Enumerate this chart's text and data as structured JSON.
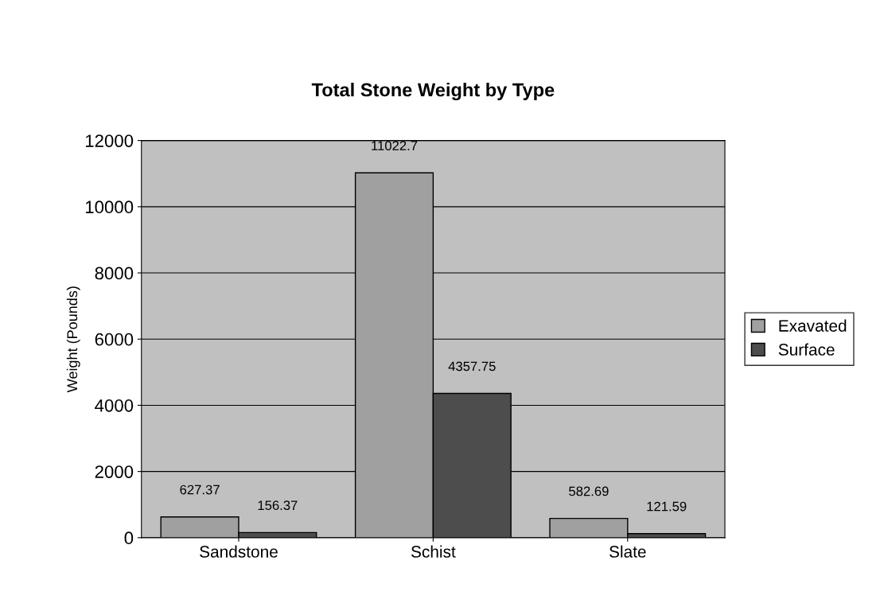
{
  "chart_data": {
    "type": "bar",
    "title": "Total Stone Weight by Type",
    "ylabel": "Weight (Pounds)",
    "categories": [
      "Sandstone",
      "Schist",
      "Slate"
    ],
    "series": [
      {
        "name": "Exavated",
        "color": "#a0a0a0",
        "values": [
          627.37,
          11022.7,
          582.69
        ]
      },
      {
        "name": "Surface",
        "color": "#4d4d4d",
        "values": [
          156.37,
          4357.75,
          121.59
        ]
      }
    ],
    "ylim": [
      0,
      12000
    ],
    "yticks": [
      0,
      2000,
      4000,
      6000,
      8000,
      10000,
      12000
    ],
    "grid": "y",
    "legend": "right",
    "data_labels": true
  }
}
